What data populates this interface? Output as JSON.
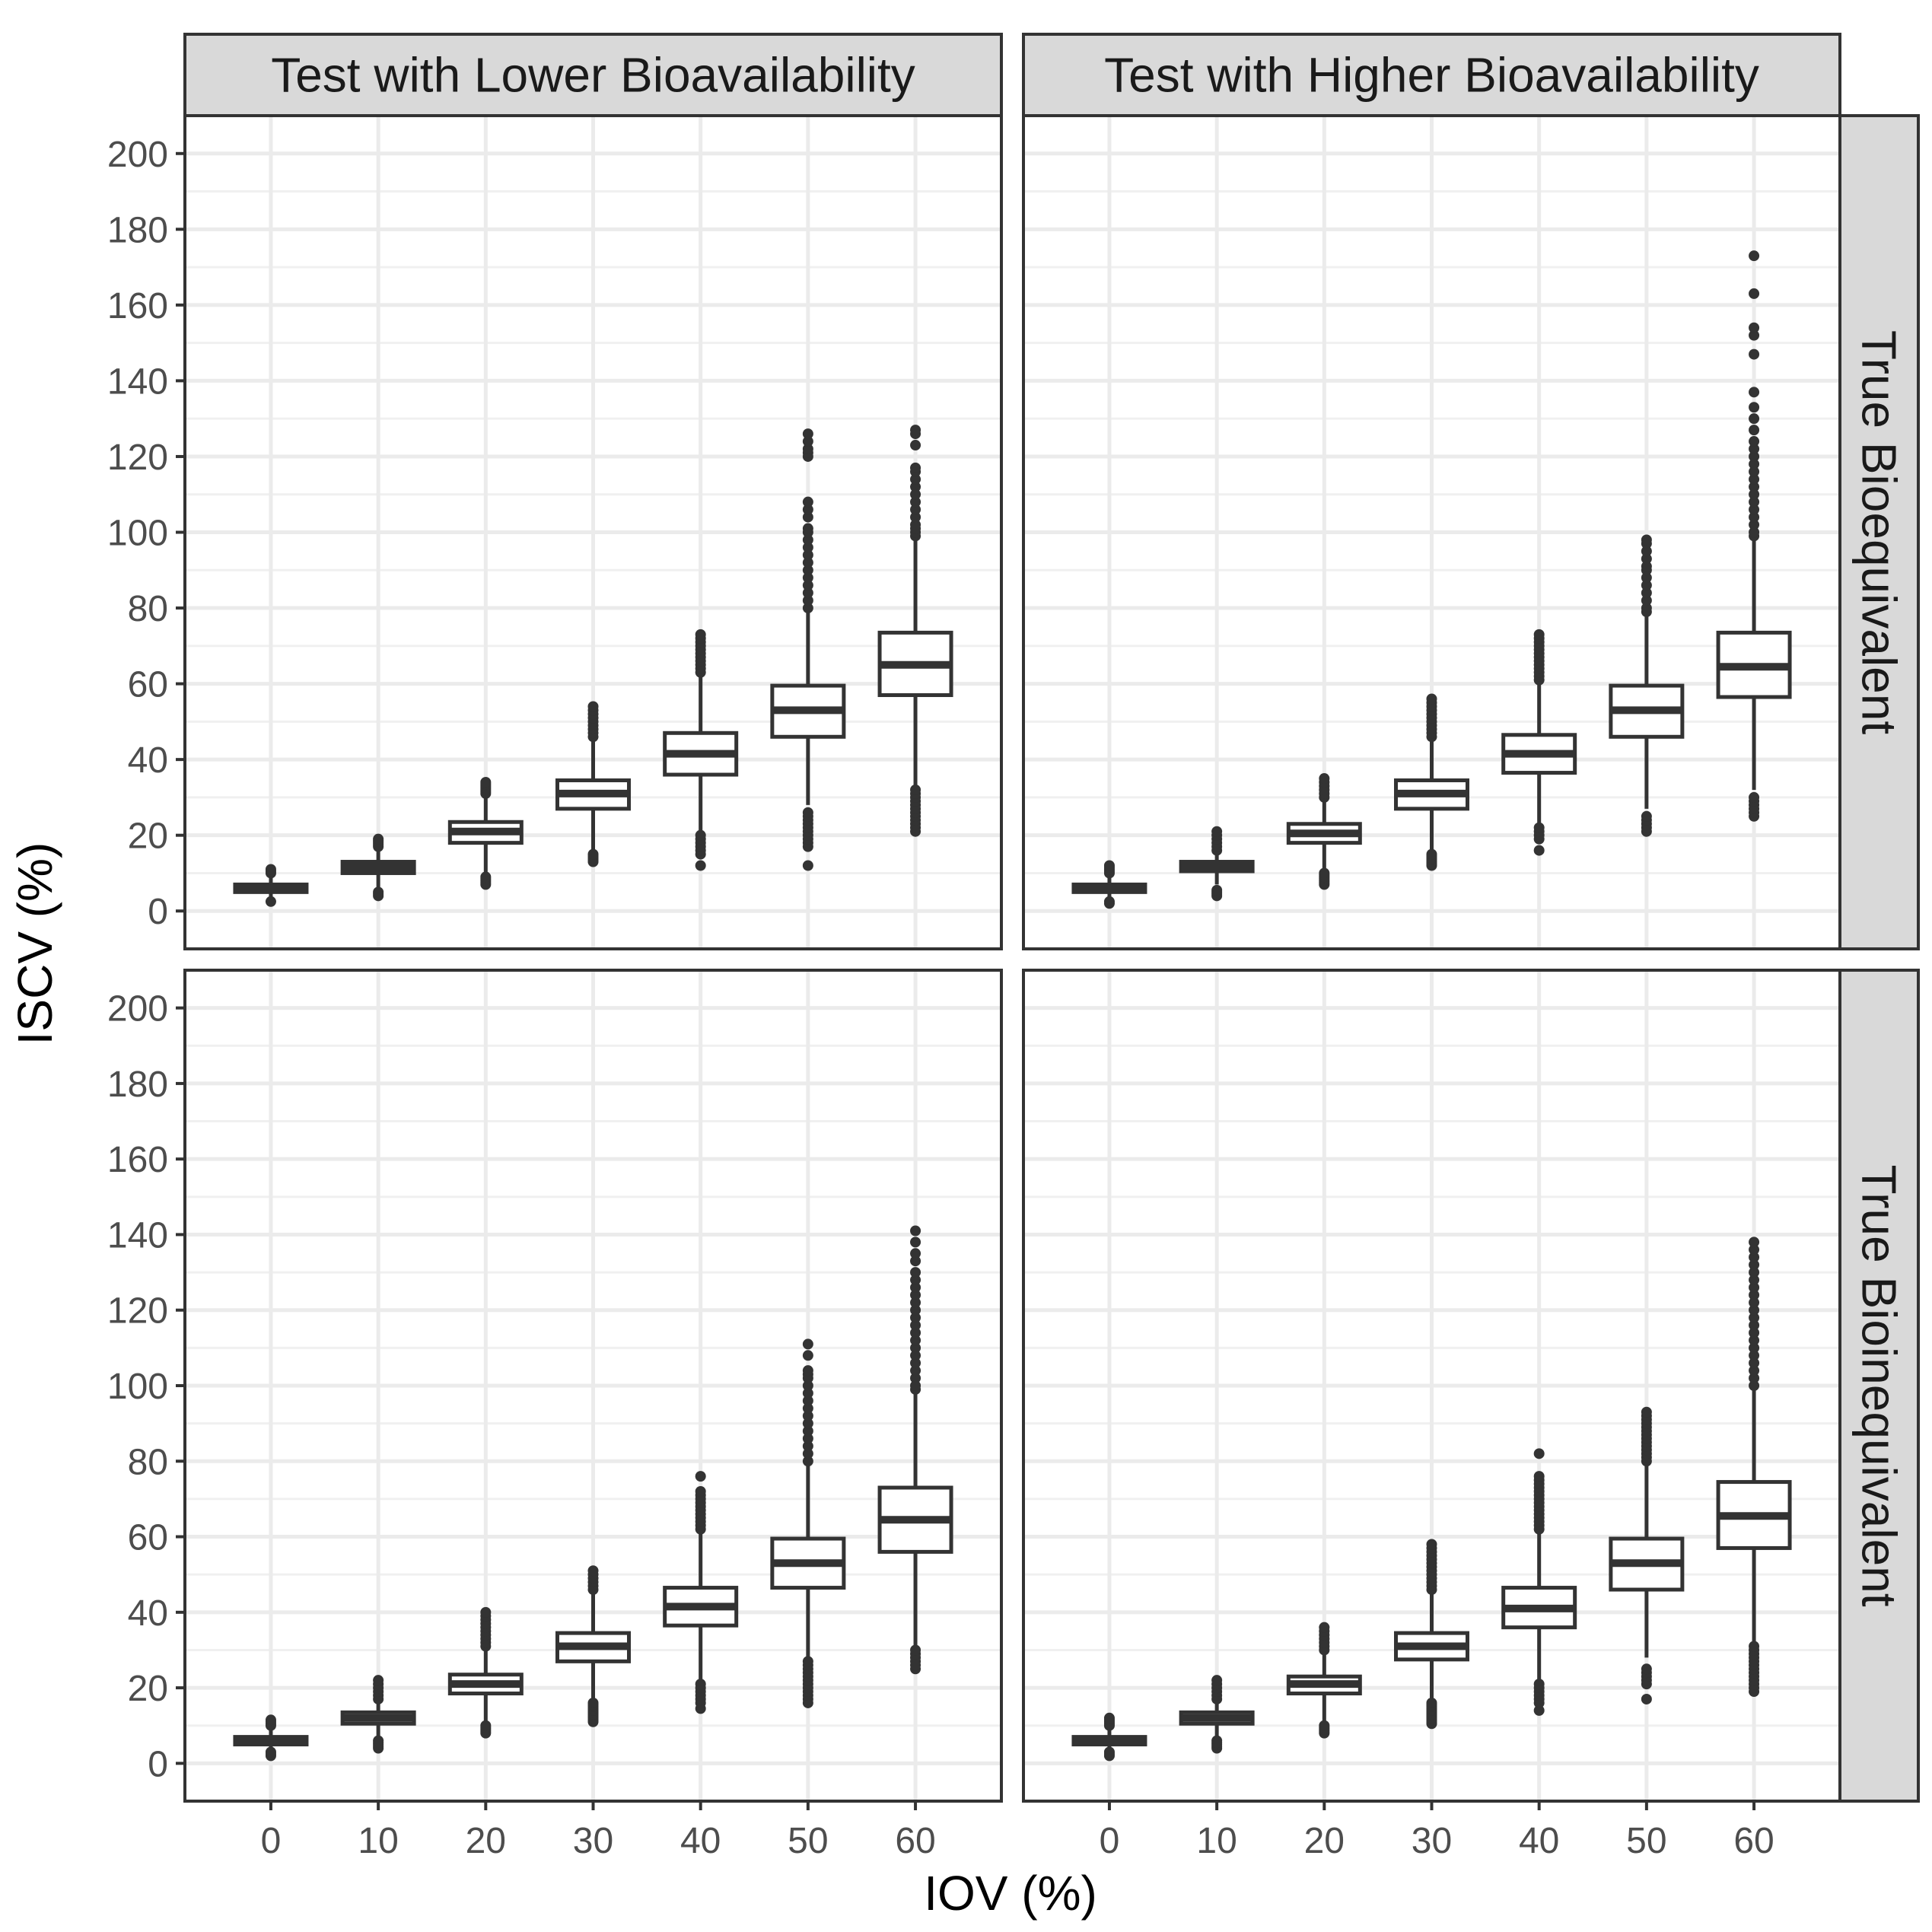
{
  "chart_data": {
    "type": "boxplot",
    "layout": "facet-grid-2x2",
    "xlabel": "IOV (%)",
    "ylabel": "ISCV (%)",
    "x_categories": [
      "0",
      "10",
      "20",
      "30",
      "40",
      "50",
      "60"
    ],
    "ylim": [
      -10,
      210
    ],
    "y_ticks": [
      0,
      20,
      40,
      60,
      80,
      100,
      120,
      140,
      160,
      180,
      200
    ],
    "grid": true,
    "column_strips": [
      "Test with Lower Bioavailability",
      "Test with Higher Bioavailability"
    ],
    "row_strips": [
      "True Bioequivalent",
      "True Bioinequivalent"
    ],
    "panels": [
      {
        "row": 0,
        "col": 0,
        "boxes": [
          {
            "x": "0",
            "q1": 5,
            "median": 6,
            "q3": 7,
            "whisker_low": 3,
            "whisker_high": 9,
            "outliers": [
              2.5,
              10,
              10.5,
              11
            ]
          },
          {
            "x": "10",
            "q1": 10,
            "median": 11.5,
            "q3": 13,
            "whisker_low": 6,
            "whisker_high": 16,
            "outliers": [
              4,
              4.5,
              5,
              17,
              17.5,
              18,
              18.5,
              19
            ]
          },
          {
            "x": "20",
            "q1": 18,
            "median": 21,
            "q3": 23.5,
            "whisker_low": 10,
            "whisker_high": 30,
            "outliers": [
              7,
              7.5,
              8,
              8.5,
              9,
              31,
              31.5,
              32,
              32.5,
              33,
              33.5,
              34
            ]
          },
          {
            "x": "30",
            "q1": 27,
            "median": 31,
            "q3": 34.5,
            "whisker_low": 16,
            "whisker_high": 45,
            "outliers": [
              13,
              13.5,
              14,
              14.5,
              15,
              46,
              47,
              48,
              49,
              50,
              51,
              52,
              53,
              54
            ]
          },
          {
            "x": "40",
            "q1": 36,
            "median": 41.5,
            "q3": 47,
            "whisker_low": 21,
            "whisker_high": 62,
            "outliers": [
              12,
              15,
              16,
              17,
              18,
              19,
              20,
              63,
              64,
              65,
              66,
              67,
              68,
              69,
              70,
              71,
              72,
              73
            ]
          },
          {
            "x": "50",
            "q1": 46,
            "median": 53,
            "q3": 59.5,
            "whisker_low": 28,
            "whisker_high": 79,
            "outliers": [
              12,
              17,
              18,
              19,
              20,
              21,
              22,
              23,
              24,
              25,
              26,
              80,
              82,
              84,
              86,
              88,
              90,
              92,
              94,
              96,
              98,
              100,
              101,
              104,
              106,
              108,
              120,
              121,
              122,
              124,
              126
            ]
          },
          {
            "x": "60",
            "q1": 57,
            "median": 65,
            "q3": 73.5,
            "whisker_low": 33,
            "whisker_high": 98,
            "outliers": [
              21,
              22,
              23,
              24,
              25,
              26,
              27,
              28,
              29,
              30,
              31,
              32,
              99,
              100,
              101,
              102,
              104,
              106,
              108,
              110,
              112,
              114,
              116,
              117,
              123,
              126,
              127
            ]
          }
        ]
      },
      {
        "row": 0,
        "col": 1,
        "boxes": [
          {
            "x": "0",
            "q1": 5,
            "median": 6,
            "q3": 7,
            "whisker_low": 3,
            "whisker_high": 9,
            "outliers": [
              2,
              2.5,
              10,
              10.5,
              11,
              11.5,
              12
            ]
          },
          {
            "x": "10",
            "q1": 10.5,
            "median": 11.5,
            "q3": 13,
            "whisker_low": 7,
            "whisker_high": 15,
            "outliers": [
              4,
              4.5,
              5,
              5.5,
              16,
              17,
              18,
              19,
              20,
              21
            ]
          },
          {
            "x": "20",
            "q1": 18,
            "median": 20.5,
            "q3": 23,
            "whisker_low": 11,
            "whisker_high": 29,
            "outliers": [
              7,
              7.5,
              8,
              8.5,
              9,
              9.5,
              10,
              30,
              31,
              32,
              33,
              34,
              35
            ]
          },
          {
            "x": "30",
            "q1": 27,
            "median": 31,
            "q3": 34.5,
            "whisker_low": 16,
            "whisker_high": 45,
            "outliers": [
              12,
              12.5,
              13,
              13.5,
              14,
              14.5,
              15,
              46,
              47,
              48,
              49,
              50,
              51,
              52,
              53,
              54,
              55,
              56
            ]
          },
          {
            "x": "40",
            "q1": 36.5,
            "median": 41.5,
            "q3": 46.5,
            "whisker_low": 23,
            "whisker_high": 60,
            "outliers": [
              16,
              19,
              20,
              21,
              22,
              61,
              62,
              63,
              64,
              65,
              66,
              67,
              68,
              69,
              70,
              71,
              72,
              73
            ]
          },
          {
            "x": "50",
            "q1": 46,
            "median": 53,
            "q3": 59.5,
            "whisker_low": 27,
            "whisker_high": 78,
            "outliers": [
              21,
              22,
              23,
              24,
              25,
              79,
              80,
              82,
              84,
              86,
              88,
              90,
              91,
              93,
              95,
              97,
              98
            ]
          },
          {
            "x": "60",
            "q1": 56.5,
            "median": 64.5,
            "q3": 73.5,
            "whisker_low": 32,
            "whisker_high": 98,
            "outliers": [
              25,
              26,
              27,
              28,
              29,
              30,
              99,
              100,
              102,
              104,
              106,
              108,
              110,
              112,
              114,
              116,
              118,
              120,
              122,
              124,
              127,
              130,
              133,
              137,
              147,
              152,
              154,
              163,
              173
            ]
          }
        ]
      },
      {
        "row": 1,
        "col": 0,
        "boxes": [
          {
            "x": "0",
            "q1": 5,
            "median": 6,
            "q3": 7,
            "whisker_low": 3,
            "whisker_high": 9,
            "outliers": [
              2,
              2.5,
              3,
              10,
              10.5,
              11,
              11.5
            ]
          },
          {
            "x": "10",
            "q1": 10.5,
            "median": 12,
            "q3": 13.5,
            "whisker_low": 7,
            "whisker_high": 16,
            "outliers": [
              4,
              4.5,
              5,
              5.5,
              6,
              17,
              18,
              19,
              20,
              21,
              22
            ]
          },
          {
            "x": "20",
            "q1": 18.5,
            "median": 21,
            "q3": 23.5,
            "whisker_low": 11,
            "whisker_high": 30,
            "outliers": [
              8,
              8.5,
              9,
              9.5,
              10,
              31,
              32,
              33,
              34,
              35,
              36,
              37,
              38,
              39,
              40
            ]
          },
          {
            "x": "30",
            "q1": 27,
            "median": 31,
            "q3": 34.5,
            "whisker_low": 17,
            "whisker_high": 45,
            "outliers": [
              11,
              11.5,
              12,
              12.5,
              13,
              13.5,
              14,
              14.5,
              15,
              15.5,
              16,
              46,
              47,
              48,
              49,
              50,
              51
            ]
          },
          {
            "x": "40",
            "q1": 36.5,
            "median": 41.5,
            "q3": 46.5,
            "whisker_low": 22,
            "whisker_high": 61,
            "outliers": [
              14.5,
              16,
              17,
              18,
              19,
              20,
              21,
              62,
              63,
              64,
              65,
              66,
              67,
              68,
              69,
              70,
              71,
              72,
              76
            ]
          },
          {
            "x": "50",
            "q1": 46.5,
            "median": 53,
            "q3": 59.5,
            "whisker_low": 28,
            "whisker_high": 79,
            "outliers": [
              16,
              17,
              18,
              19,
              20,
              21,
              22,
              23,
              24,
              25,
              26,
              27,
              80,
              82,
              84,
              86,
              88,
              90,
              92,
              94,
              96,
              98,
              100,
              102,
              103,
              104,
              108,
              111
            ]
          },
          {
            "x": "60",
            "q1": 56,
            "median": 64.5,
            "q3": 73,
            "whisker_low": 31,
            "whisker_high": 98,
            "outliers": [
              25,
              26,
              27,
              28,
              29,
              30,
              99,
              100,
              102,
              104,
              106,
              108,
              110,
              112,
              114,
              116,
              118,
              120,
              122,
              124,
              126,
              128,
              130,
              133,
              135,
              138,
              141
            ]
          }
        ]
      },
      {
        "row": 1,
        "col": 1,
        "boxes": [
          {
            "x": "0",
            "q1": 5,
            "median": 6,
            "q3": 7,
            "whisker_low": 3,
            "whisker_high": 9,
            "outliers": [
              2,
              2.5,
              3,
              10,
              10.5,
              11,
              11.5,
              12
            ]
          },
          {
            "x": "10",
            "q1": 10.5,
            "median": 12,
            "q3": 13.5,
            "whisker_low": 7,
            "whisker_high": 16,
            "outliers": [
              4,
              4.5,
              5,
              5.5,
              6,
              17,
              18,
              19,
              20,
              21,
              22
            ]
          },
          {
            "x": "20",
            "q1": 18.5,
            "median": 21,
            "q3": 23,
            "whisker_low": 11,
            "whisker_high": 29,
            "outliers": [
              8,
              8.5,
              9,
              9.5,
              10,
              30,
              31,
              32,
              33,
              34,
              35,
              36
            ]
          },
          {
            "x": "30",
            "q1": 27.5,
            "median": 31,
            "q3": 34.5,
            "whisker_low": 17,
            "whisker_high": 45,
            "outliers": [
              10.5,
              11,
              11.5,
              12,
              12.5,
              13,
              13.5,
              14,
              14.5,
              15,
              15.5,
              16,
              46,
              47,
              48,
              49,
              50,
              51,
              52,
              53,
              54,
              55,
              56,
              57,
              58
            ]
          },
          {
            "x": "40",
            "q1": 36,
            "median": 41,
            "q3": 46.5,
            "whisker_low": 22,
            "whisker_high": 61,
            "outliers": [
              14,
              16,
              17,
              18,
              19,
              20,
              21,
              62,
              63,
              64,
              65,
              66,
              67,
              68,
              69,
              70,
              71,
              72,
              73,
              74,
              75,
              76,
              82
            ]
          },
          {
            "x": "50",
            "q1": 46,
            "median": 53,
            "q3": 59.5,
            "whisker_low": 28,
            "whisker_high": 79,
            "outliers": [
              17,
              21,
              22,
              23,
              24,
              25,
              80,
              81,
              82,
              83,
              84,
              85,
              86,
              87,
              88,
              89,
              90,
              91,
              92,
              93
            ]
          },
          {
            "x": "60",
            "q1": 57,
            "median": 65.5,
            "q3": 74.5,
            "whisker_low": 32,
            "whisker_high": 99,
            "outliers": [
              19,
              20,
              21,
              22,
              23,
              24,
              25,
              26,
              27,
              28,
              29,
              30,
              31,
              100,
              102,
              104,
              106,
              108,
              110,
              112,
              114,
              116,
              118,
              120,
              122,
              124,
              126,
              128,
              130,
              132,
              134,
              136,
              138
            ]
          }
        ]
      }
    ]
  }
}
